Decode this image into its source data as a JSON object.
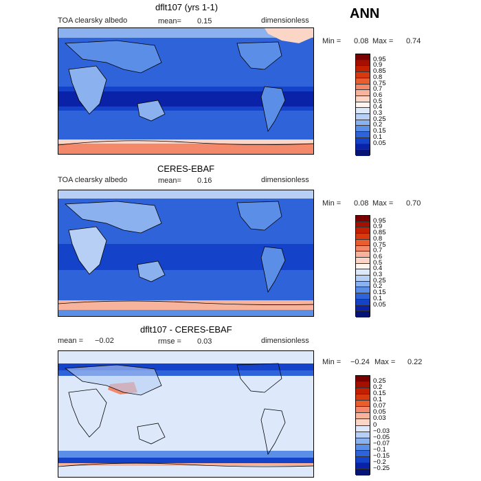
{
  "season": "ANN",
  "panels": [
    {
      "title": "dflt107 (yrs 1-1)",
      "left": "TOA clearsky albedo",
      "mean_label": "mean=",
      "mean_value": "0.15",
      "units": "dimensionless",
      "min_label": "Min =",
      "min_value": "0.08",
      "max_label": "Max =",
      "max_value": "0.74"
    },
    {
      "title": "CERES-EBAF",
      "left": "TOA clearsky albedo",
      "mean_label": "mean=",
      "mean_value": "0.16",
      "units": "dimensionless",
      "min_label": "Min =",
      "min_value": "0.08",
      "max_label": "Max =",
      "max_value": "0.70"
    },
    {
      "title": "dflt107 - CERES-EBAF",
      "left_label": "mean =",
      "left_value": "−0.02",
      "rmse_label": "rmse =",
      "rmse_value": "0.03",
      "units": "dimensionless",
      "min_label": "Min =",
      "min_value": "−0.24",
      "max_label": "Max =",
      "max_value": "0.22"
    }
  ],
  "colorbars": {
    "albedo": {
      "labels": [
        "0.95",
        "0.9",
        "0.85",
        "0.8",
        "0.75",
        "0.7",
        "0.6",
        "0.5",
        "0.4",
        "0.3",
        "0.25",
        "0.2",
        "0.15",
        "0.1",
        "0.05"
      ],
      "colors": [
        "#7a0000",
        "#a50f00",
        "#c42000",
        "#d83a0f",
        "#ea5d2e",
        "#f3886a",
        "#f8b39c",
        "#fbd6c6",
        "#fff5ee",
        "#dde9fb",
        "#b8cff5",
        "#8cb1ef",
        "#5b8ee6",
        "#2f63da",
        "#1442c8",
        "#0a22a8",
        "#061478"
      ]
    },
    "diff": {
      "labels": [
        "0.25",
        "0.2",
        "0.15",
        "0.1",
        "0.07",
        "0.05",
        "0.03",
        "0",
        "−0.03",
        "−0.05",
        "−0.07",
        "−0.1",
        "−0.15",
        "−0.2",
        "−0.25"
      ],
      "colors": [
        "#7a0000",
        "#a50f00",
        "#c42000",
        "#d83a0f",
        "#ea5d2e",
        "#f3886a",
        "#f8b39c",
        "#fbd6c6",
        "#dde9fb",
        "#b8cff5",
        "#8cb1ef",
        "#5b8ee6",
        "#2f63da",
        "#1442c8",
        "#0a22a8",
        "#061478"
      ]
    }
  },
  "chart_data": [
    {
      "type": "heatmap",
      "title": "dflt107 (yrs 1-1)",
      "variable": "TOA clearsky albedo",
      "units": "dimensionless",
      "mean": 0.15,
      "min": 0.08,
      "max": 0.74,
      "levels": [
        0.05,
        0.1,
        0.15,
        0.2,
        0.25,
        0.3,
        0.4,
        0.5,
        0.6,
        0.7,
        0.75,
        0.8,
        0.85,
        0.9,
        0.95
      ]
    },
    {
      "type": "heatmap",
      "title": "CERES-EBAF",
      "variable": "TOA clearsky albedo",
      "units": "dimensionless",
      "mean": 0.16,
      "min": 0.08,
      "max": 0.7,
      "levels": [
        0.05,
        0.1,
        0.15,
        0.2,
        0.25,
        0.3,
        0.4,
        0.5,
        0.6,
        0.7,
        0.75,
        0.8,
        0.85,
        0.9,
        0.95
      ]
    },
    {
      "type": "heatmap",
      "title": "dflt107 - CERES-EBAF",
      "units": "dimensionless",
      "mean": -0.02,
      "rmse": 0.03,
      "min": -0.24,
      "max": 0.22,
      "levels": [
        -0.25,
        -0.2,
        -0.15,
        -0.1,
        -0.07,
        -0.05,
        -0.03,
        0,
        0.03,
        0.05,
        0.07,
        0.1,
        0.15,
        0.2,
        0.25
      ]
    }
  ]
}
